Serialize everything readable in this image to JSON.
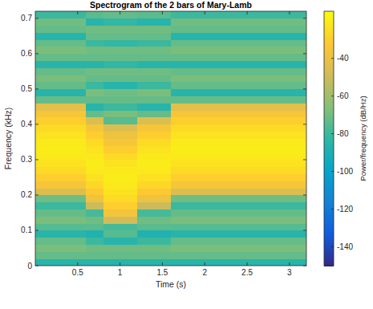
{
  "chart_data": {
    "type": "heatmap",
    "title": "Spectrogram of the 2 bars of Mary-Lamb",
    "x_label": "Time (s)",
    "y_label": "Frequency (kHz)",
    "xlim": [
      0,
      3.2
    ],
    "ylim": [
      0,
      0.72
    ],
    "xticks": [
      0.5,
      1,
      1.5,
      2,
      2.5,
      3
    ],
    "yticks": [
      0,
      0.1,
      0.2,
      0.3,
      0.4,
      0.5,
      0.6,
      0.7
    ],
    "x_edges": [
      0,
      0.6,
      0.8,
      1.2,
      1.6,
      2.0,
      2.4,
      3.2
    ],
    "y_edges": [
      0,
      0.02,
      0.04,
      0.06,
      0.08,
      0.1,
      0.12,
      0.14,
      0.16,
      0.18,
      0.2,
      0.22,
      0.24,
      0.26,
      0.28,
      0.3,
      0.32,
      0.34,
      0.36,
      0.38,
      0.4,
      0.42,
      0.44,
      0.46,
      0.48,
      0.5,
      0.52,
      0.54,
      0.56,
      0.58,
      0.6,
      0.62,
      0.64,
      0.66,
      0.68,
      0.7,
      0.72
    ],
    "cells": [
      [
        -85,
        -85,
        -85,
        -85,
        -85,
        -85,
        -85
      ],
      [
        -72,
        -72,
        -72,
        -72,
        -72,
        -72,
        -72
      ],
      [
        -68,
        -70,
        -70,
        -70,
        -68,
        -68,
        -68
      ],
      [
        -72,
        -80,
        -85,
        -80,
        -72,
        -72,
        -72
      ],
      [
        -85,
        -88,
        -75,
        -88,
        -85,
        -85,
        -85
      ],
      [
        -75,
        -74,
        -78,
        -74,
        -75,
        -75,
        -75
      ],
      [
        -68,
        -70,
        -48,
        -70,
        -68,
        -68,
        -68
      ],
      [
        -72,
        -78,
        -36,
        -78,
        -72,
        -72,
        -72
      ],
      [
        -80,
        -50,
        -30,
        -50,
        -80,
        -80,
        -80
      ],
      [
        -70,
        -38,
        -26,
        -38,
        -70,
        -70,
        -70
      ],
      [
        -45,
        -32,
        -23,
        -32,
        -45,
        -45,
        -45
      ],
      [
        -35,
        -27,
        -21,
        -27,
        -35,
        -35,
        -35
      ],
      [
        -30,
        -24,
        -20,
        -24,
        -30,
        -30,
        -30
      ],
      [
        -26,
        -21,
        -21,
        -21,
        -26,
        -26,
        -26
      ],
      [
        -23,
        -20,
        -23,
        -20,
        -23,
        -23,
        -23
      ],
      [
        -21,
        -21,
        -26,
        -21,
        -21,
        -21,
        -21
      ],
      [
        -20,
        -23,
        -30,
        -23,
        -20,
        -20,
        -20
      ],
      [
        -21,
        -26,
        -35,
        -26,
        -21,
        -21,
        -21
      ],
      [
        -23,
        -30,
        -38,
        -30,
        -23,
        -23,
        -23
      ],
      [
        -26,
        -35,
        -45,
        -35,
        -26,
        -26,
        -26
      ],
      [
        -30,
        -45,
        -75,
        -45,
        -30,
        -30,
        -30
      ],
      [
        -35,
        -72,
        -68,
        -72,
        -35,
        -35,
        -35
      ],
      [
        -42,
        -85,
        -80,
        -85,
        -42,
        -42,
        -42
      ],
      [
        -72,
        -72,
        -72,
        -72,
        -72,
        -72,
        -72
      ],
      [
        -85,
        -68,
        -70,
        -68,
        -85,
        -85,
        -85
      ],
      [
        -72,
        -80,
        -85,
        -80,
        -72,
        -72,
        -72
      ],
      [
        -68,
        -72,
        -72,
        -72,
        -68,
        -68,
        -68
      ],
      [
        -72,
        -70,
        -70,
        -70,
        -72,
        -72,
        -72
      ],
      [
        -85,
        -85,
        -82,
        -85,
        -85,
        -85,
        -85
      ],
      [
        -72,
        -72,
        -72,
        -72,
        -72,
        -72,
        -72
      ],
      [
        -68,
        -70,
        -70,
        -70,
        -68,
        -68,
        -68
      ],
      [
        -72,
        -80,
        -82,
        -80,
        -72,
        -72,
        -72
      ],
      [
        -85,
        -72,
        -72,
        -72,
        -85,
        -85,
        -85
      ],
      [
        -72,
        -70,
        -70,
        -70,
        -72,
        -72,
        -72
      ],
      [
        -70,
        -85,
        -82,
        -85,
        -70,
        -70,
        -70
      ],
      [
        -80,
        -74,
        -72,
        -74,
        -80,
        -80,
        -80
      ]
    ],
    "colorbar_label": "Power/frequency (dB/Hz)",
    "colorbar_lim": [
      -150,
      -15
    ],
    "colorbar_ticks": [
      -140,
      -120,
      -100,
      -80,
      -60,
      -40
    ]
  }
}
